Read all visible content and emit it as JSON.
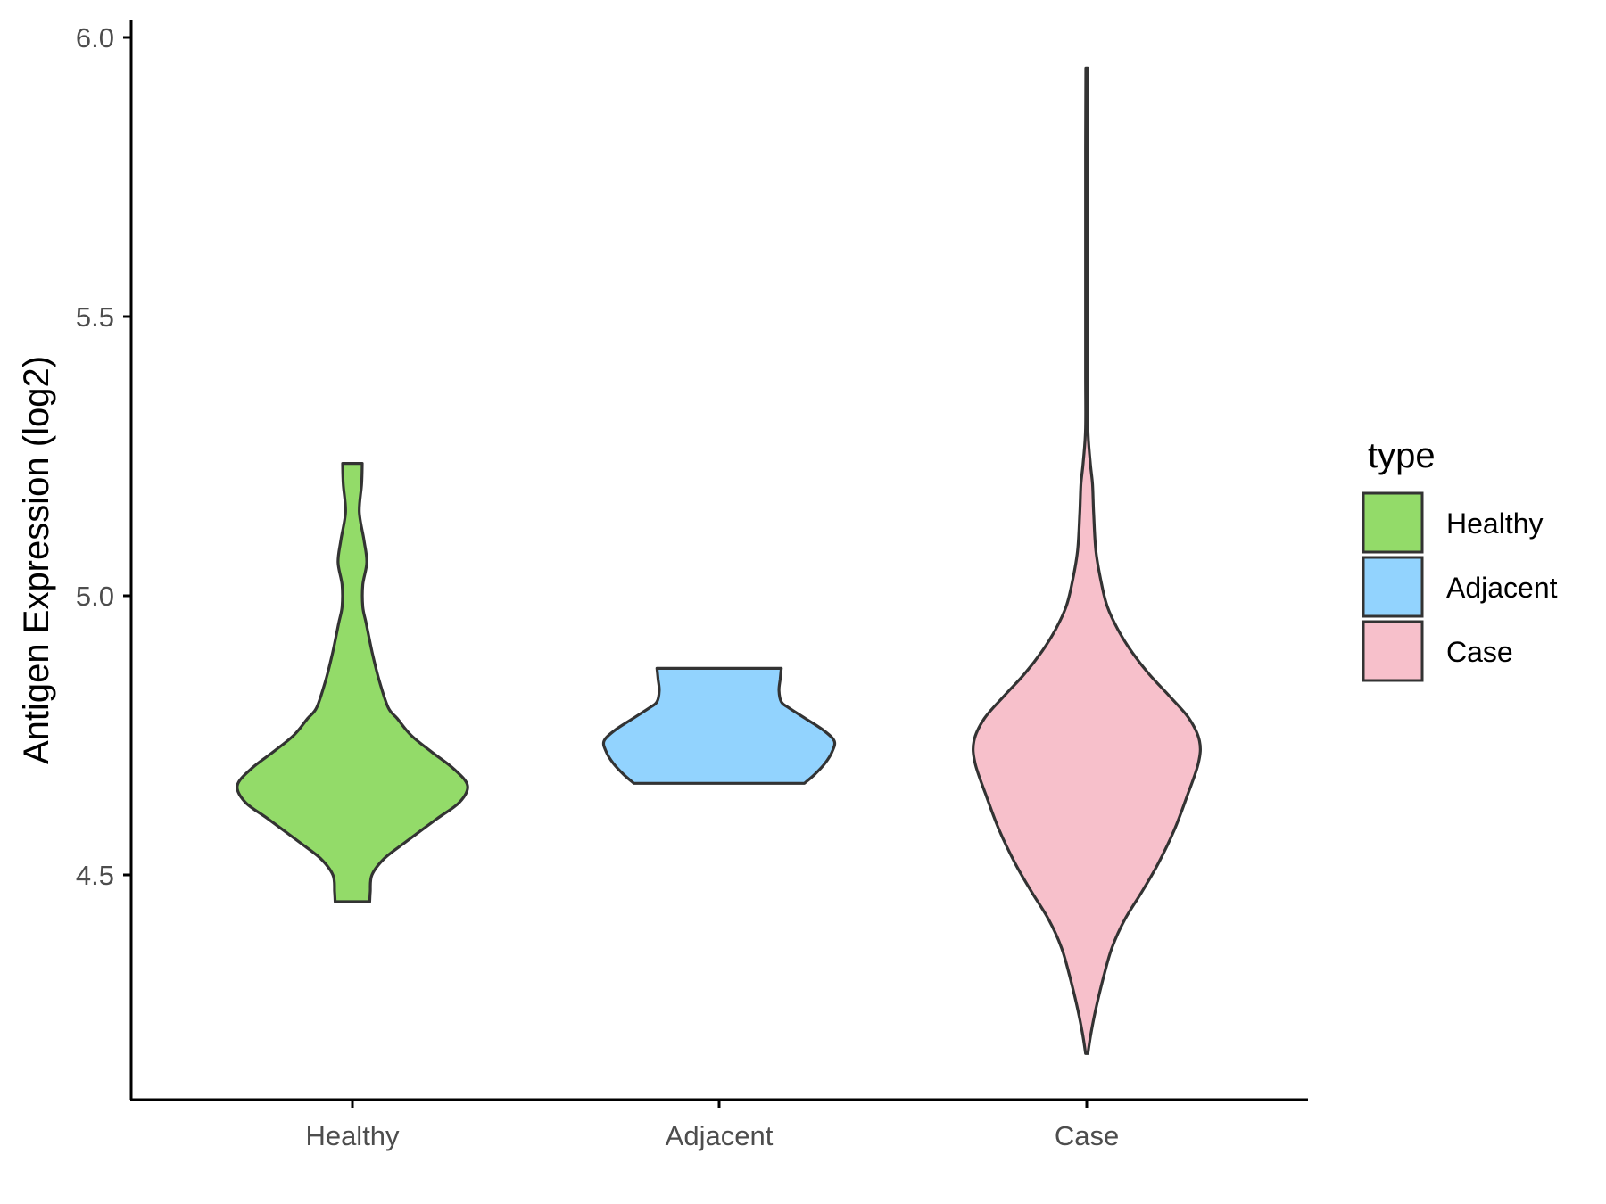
{
  "chart_data": {
    "type": "violin",
    "ylabel": "Antigen Expression (log2)",
    "xlabel": "",
    "categories": [
      "Healthy",
      "Adjacent",
      "Case"
    ],
    "ylim": [
      4.11,
      6.05
    ],
    "yticks": [
      4.5,
      5.0,
      5.5,
      6.0
    ],
    "ytick_labels": [
      "4.5",
      "5.0",
      "5.5",
      "6.0"
    ],
    "grid": false,
    "legend": {
      "title": "type",
      "position": "right",
      "entries": [
        {
          "label": "Healthy",
          "color": "#93DB69"
        },
        {
          "label": "Adjacent",
          "color": "#92D3FE"
        },
        {
          "label": "Case",
          "color": "#F7C0CB"
        }
      ]
    },
    "series": [
      {
        "category": "Healthy",
        "color": "#93DB69",
        "y_min": 4.452,
        "y_max": 5.237,
        "density_profile": [
          [
            4.452,
            0.15
          ],
          [
            4.47,
            0.155
          ],
          [
            4.5,
            0.17
          ],
          [
            4.53,
            0.28
          ],
          [
            4.56,
            0.47
          ],
          [
            4.6,
            0.73
          ],
          [
            4.63,
            0.93
          ],
          [
            4.66,
            1.0
          ],
          [
            4.69,
            0.88
          ],
          [
            4.72,
            0.69
          ],
          [
            4.75,
            0.51
          ],
          [
            4.78,
            0.39
          ],
          [
            4.8,
            0.31
          ],
          [
            4.85,
            0.23
          ],
          [
            4.9,
            0.17
          ],
          [
            4.95,
            0.12
          ],
          [
            4.98,
            0.09
          ],
          [
            5.02,
            0.09
          ],
          [
            5.06,
            0.125
          ],
          [
            5.1,
            0.1
          ],
          [
            5.15,
            0.06
          ],
          [
            5.2,
            0.08
          ],
          [
            5.237,
            0.085
          ]
        ]
      },
      {
        "category": "Adjacent",
        "color": "#92D3FE",
        "y_min": 4.664,
        "y_max": 4.87,
        "density_profile": [
          [
            4.664,
            0.74
          ],
          [
            4.68,
            0.83
          ],
          [
            4.7,
            0.92
          ],
          [
            4.72,
            0.98
          ],
          [
            4.74,
            1.0
          ],
          [
            4.76,
            0.9
          ],
          [
            4.78,
            0.75
          ],
          [
            4.8,
            0.6
          ],
          [
            4.81,
            0.54
          ],
          [
            4.83,
            0.52
          ],
          [
            4.85,
            0.53
          ],
          [
            4.87,
            0.54
          ]
        ]
      },
      {
        "category": "Case",
        "color": "#F7C0CB",
        "y_min": 4.18,
        "y_max": 5.945,
        "density_profile": [
          [
            4.18,
            0.01
          ],
          [
            4.22,
            0.04
          ],
          [
            4.27,
            0.09
          ],
          [
            4.32,
            0.15
          ],
          [
            4.37,
            0.22
          ],
          [
            4.42,
            0.33
          ],
          [
            4.47,
            0.48
          ],
          [
            4.52,
            0.62
          ],
          [
            4.58,
            0.76
          ],
          [
            4.64,
            0.87
          ],
          [
            4.7,
            0.97
          ],
          [
            4.74,
            0.98
          ],
          [
            4.78,
            0.89
          ],
          [
            4.82,
            0.72
          ],
          [
            4.86,
            0.54
          ],
          [
            4.9,
            0.39
          ],
          [
            4.94,
            0.27
          ],
          [
            4.98,
            0.18
          ],
          [
            5.02,
            0.13
          ],
          [
            5.08,
            0.08
          ],
          [
            5.15,
            0.06
          ],
          [
            5.2,
            0.05
          ],
          [
            5.24,
            0.03
          ],
          [
            5.3,
            0.01
          ],
          [
            5.4,
            0.01
          ],
          [
            5.6,
            0.01
          ],
          [
            5.8,
            0.01
          ],
          [
            5.945,
            0.008
          ]
        ]
      }
    ]
  }
}
